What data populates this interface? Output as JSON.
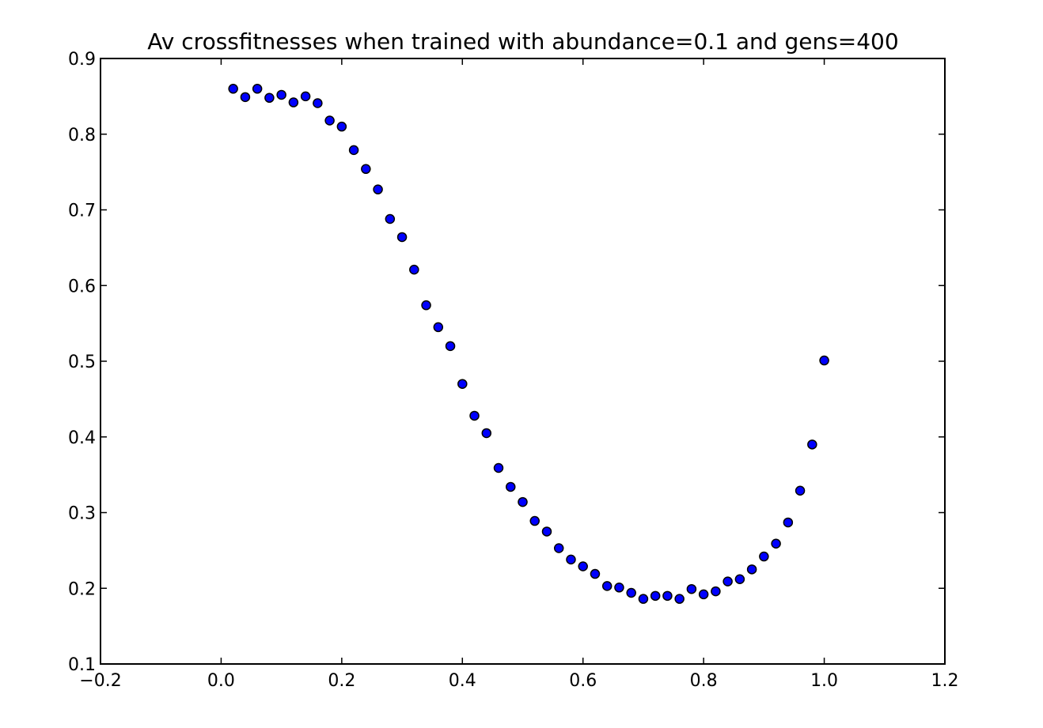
{
  "chart_data": {
    "type": "scatter",
    "title": "Av crossfitnesses when trained with abundance=0.1 and gens=400",
    "xlabel": "",
    "ylabel": "",
    "xlim": [
      -0.2,
      1.2
    ],
    "ylim": [
      0.1,
      0.9
    ],
    "x_ticks": [
      "−0.2",
      "0.0",
      "0.2",
      "0.4",
      "0.6",
      "0.8",
      "1.0",
      "1.2"
    ],
    "y_ticks": [
      "0.1",
      "0.2",
      "0.3",
      "0.4",
      "0.5",
      "0.6",
      "0.7",
      "0.8",
      "0.9"
    ],
    "grid": false,
    "marker_color": "#0000ff",
    "series": [
      {
        "x": [
          0.02,
          0.04,
          0.06,
          0.08,
          0.1,
          0.12,
          0.14,
          0.16,
          0.18,
          0.2,
          0.22,
          0.24,
          0.26,
          0.28,
          0.3,
          0.32,
          0.34,
          0.36,
          0.38,
          0.4,
          0.42,
          0.44,
          0.46,
          0.48,
          0.5,
          0.52,
          0.54,
          0.56,
          0.58,
          0.6,
          0.62,
          0.64,
          0.66,
          0.68,
          0.7,
          0.72,
          0.74,
          0.76,
          0.78,
          0.8,
          0.82,
          0.84,
          0.86,
          0.88,
          0.9,
          0.92,
          0.94,
          0.96,
          0.98,
          1.0
        ],
        "y": [
          0.86,
          0.849,
          0.86,
          0.848,
          0.852,
          0.842,
          0.85,
          0.841,
          0.818,
          0.81,
          0.779,
          0.754,
          0.727,
          0.688,
          0.664,
          0.621,
          0.574,
          0.545,
          0.52,
          0.47,
          0.428,
          0.405,
          0.359,
          0.334,
          0.314,
          0.289,
          0.275,
          0.253,
          0.238,
          0.229,
          0.219,
          0.203,
          0.201,
          0.194,
          0.186,
          0.19,
          0.19,
          0.186,
          0.199,
          0.192,
          0.196,
          0.209,
          0.212,
          0.225,
          0.242,
          0.259,
          0.287,
          0.329,
          0.39,
          0.501
        ]
      }
    ]
  }
}
